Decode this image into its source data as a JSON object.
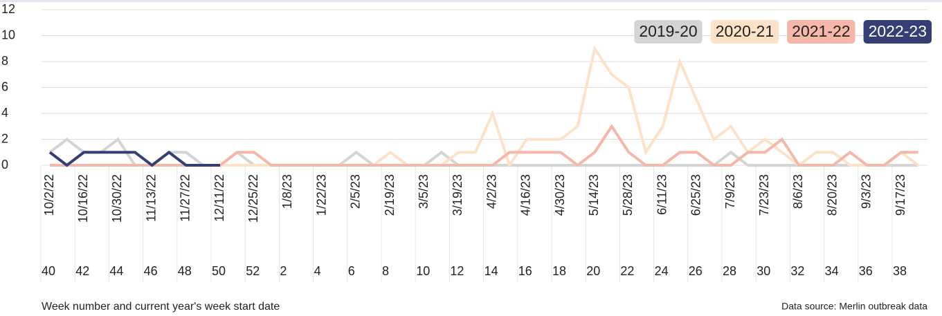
{
  "chart_data": {
    "type": "line",
    "xlabel": "Week number and current year's week start date",
    "source": "Data source: Merlin outbreak data",
    "categories": [
      "40",
      null,
      "42",
      null,
      "44",
      null,
      "46",
      null,
      "48",
      null,
      "50",
      null,
      "52",
      null,
      "2",
      null,
      "4",
      null,
      "6",
      null,
      "8",
      null,
      "10",
      null,
      "12",
      null,
      "14",
      null,
      "16",
      null,
      "18",
      null,
      "20",
      null,
      "22",
      null,
      "24",
      null,
      "26",
      null,
      "28",
      null,
      "30",
      null,
      "32",
      null,
      "34",
      null,
      "36",
      null,
      "38",
      null
    ],
    "dates": [
      "10/2/22",
      null,
      "10/16/22",
      null,
      "10/30/22",
      null,
      "11/13/22",
      null,
      "11/27/22",
      null,
      "12/11/22",
      null,
      "12/25/22",
      null,
      "1/8/23",
      null,
      "1/22/23",
      null,
      "2/5/23",
      null,
      "2/19/23",
      null,
      "3/5/23",
      null,
      "3/19/23",
      null,
      "4/2/23",
      null,
      "4/16/23",
      null,
      "4/30/23",
      null,
      "5/14/23",
      null,
      "5/28/23",
      null,
      "6/11/23",
      null,
      "6/25/23",
      null,
      "7/9/23",
      null,
      "7/23/23",
      null,
      "8/6/23",
      null,
      "8/20/23",
      null,
      "9/3/23",
      null,
      "9/17/23",
      null
    ],
    "series": [
      {
        "name": "2019-20",
        "color": "#d4d4d4",
        "text_color": "#222222",
        "values": [
          1,
          2,
          1,
          1,
          2,
          0,
          0,
          1,
          1,
          0,
          0,
          1,
          0,
          0,
          0,
          0,
          0,
          0,
          1,
          0,
          0,
          0,
          0,
          1,
          0,
          0,
          0,
          0,
          0,
          0,
          0,
          0,
          0,
          0,
          0,
          0,
          0,
          0,
          0,
          0,
          1,
          0,
          0,
          0,
          0,
          0,
          0,
          0,
          0,
          0,
          0,
          0
        ]
      },
      {
        "name": "2020-21",
        "color": "#fde2c8",
        "text_color": "#222222",
        "values": [
          0,
          0,
          0,
          0,
          0,
          0,
          0,
          0,
          0,
          0,
          0,
          0,
          0,
          0,
          0,
          0,
          0,
          0,
          0,
          0,
          1,
          0,
          0,
          0,
          1,
          1,
          4,
          0,
          2,
          2,
          2,
          3,
          9,
          7,
          6,
          1,
          3,
          8,
          5,
          2,
          3,
          1,
          2,
          1,
          0,
          1,
          1,
          0,
          0,
          0,
          1,
          0
        ]
      },
      {
        "name": "2021-22",
        "color": "#f5b8a8",
        "text_color": "#222222",
        "values": [
          0,
          0,
          0,
          0,
          0,
          0,
          0,
          0,
          0,
          0,
          0,
          1,
          1,
          0,
          0,
          0,
          0,
          0,
          0,
          0,
          0,
          0,
          0,
          0,
          0,
          0,
          0,
          1,
          1,
          1,
          1,
          0,
          1,
          3,
          1,
          0,
          0,
          1,
          1,
          0,
          0,
          1,
          1,
          2,
          0,
          0,
          0,
          1,
          0,
          0,
          1,
          1
        ]
      },
      {
        "name": "2022-23",
        "color": "#363f75",
        "text_color": "#ffffff",
        "values": [
          1,
          0,
          1,
          1,
          1,
          1,
          0,
          1,
          0,
          0,
          0,
          null,
          null,
          null,
          null,
          null,
          null,
          null,
          null,
          null,
          null,
          null,
          null,
          null,
          null,
          null,
          null,
          null,
          null,
          null,
          null,
          null,
          null,
          null,
          null,
          null,
          null,
          null,
          null,
          null,
          null,
          null,
          null,
          null,
          null,
          null,
          null,
          null,
          null,
          null,
          null,
          null
        ]
      }
    ],
    "ylim": [
      0,
      12
    ],
    "yticks": [
      0,
      2,
      4,
      6,
      8,
      10,
      12
    ],
    "grid": true,
    "legend": "top-right"
  }
}
